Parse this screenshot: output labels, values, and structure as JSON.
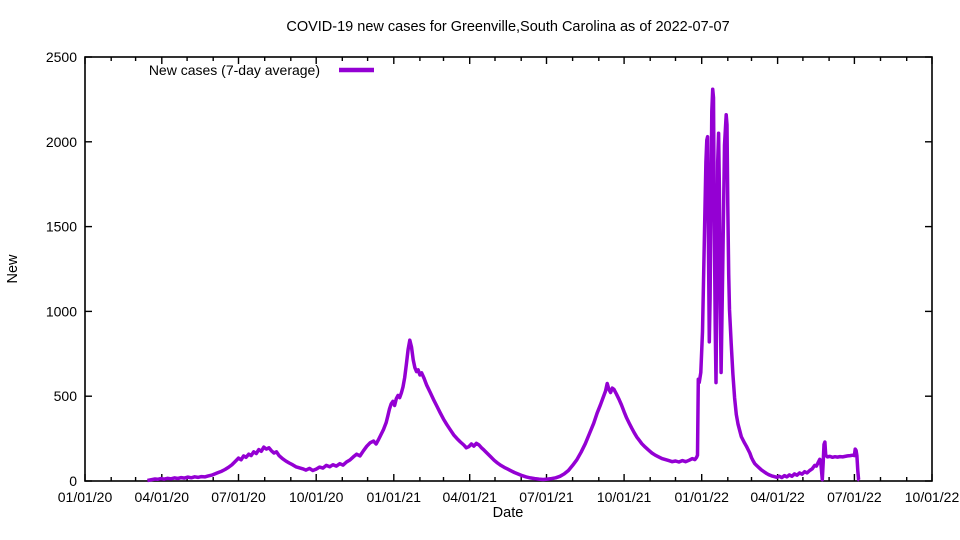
{
  "title": "COVID-19 new cases for Greenville,South Carolina as of 2022-07-07",
  "colors": {
    "line": "#9400d3",
    "text": "#000000",
    "background": "#ffffff",
    "border": "#000000"
  },
  "chart_data": {
    "type": "line",
    "title": "COVID-19 new cases for Greenville,South Carolina as of 2022-07-07",
    "xlabel": "Date",
    "ylabel": "New",
    "grid": false,
    "legend_position": "top-left-inside",
    "legend": [
      {
        "label": "New cases (7-day average)",
        "color": "#9400d3"
      }
    ],
    "line_color": "#9400d3",
    "line_width": 3.5,
    "x_axis": {
      "tick_labels": [
        "01/01/20",
        "04/01/20",
        "07/01/20",
        "10/01/20",
        "01/01/21",
        "04/01/21",
        "07/01/21",
        "10/01/21",
        "01/01/22",
        "04/01/22",
        "07/01/22",
        "10/01/22"
      ],
      "minor_ticks": "monthly",
      "range_dates": [
        "01/01/20",
        "10/01/22"
      ]
    },
    "y_axis": {
      "ticks": [
        0,
        500,
        1000,
        1500,
        2000,
        2500
      ],
      "range": [
        0,
        2500
      ]
    },
    "series": [
      {
        "name": "New cases (7-day average)",
        "x_unit": "days_since_2020_01_01",
        "points": [
          [
            74,
            3
          ],
          [
            77,
            6
          ],
          [
            80,
            9
          ],
          [
            83,
            12
          ],
          [
            86,
            10
          ],
          [
            90,
            14
          ],
          [
            94,
            11
          ],
          [
            98,
            16
          ],
          [
            102,
            13
          ],
          [
            106,
            18
          ],
          [
            110,
            15
          ],
          [
            114,
            20
          ],
          [
            118,
            17
          ],
          [
            122,
            23
          ],
          [
            126,
            19
          ],
          [
            130,
            25
          ],
          [
            134,
            21
          ],
          [
            138,
            26
          ],
          [
            142,
            24
          ],
          [
            146,
            30
          ],
          [
            150,
            34
          ],
          [
            154,
            42
          ],
          [
            158,
            50
          ],
          [
            162,
            58
          ],
          [
            166,
            68
          ],
          [
            170,
            80
          ],
          [
            174,
            95
          ],
          [
            178,
            115
          ],
          [
            182,
            135
          ],
          [
            185,
            125
          ],
          [
            188,
            148
          ],
          [
            191,
            140
          ],
          [
            194,
            158
          ],
          [
            197,
            150
          ],
          [
            200,
            172
          ],
          [
            203,
            162
          ],
          [
            206,
            185
          ],
          [
            209,
            175
          ],
          [
            212,
            200
          ],
          [
            215,
            188
          ],
          [
            218,
            196
          ],
          [
            221,
            178
          ],
          [
            224,
            165
          ],
          [
            227,
            172
          ],
          [
            230,
            150
          ],
          [
            234,
            132
          ],
          [
            238,
            118
          ],
          [
            242,
            106
          ],
          [
            246,
            96
          ],
          [
            250,
            84
          ],
          [
            254,
            78
          ],
          [
            258,
            72
          ],
          [
            262,
            64
          ],
          [
            266,
            74
          ],
          [
            270,
            62
          ],
          [
            274,
            70
          ],
          [
            278,
            82
          ],
          [
            282,
            76
          ],
          [
            286,
            92
          ],
          [
            290,
            84
          ],
          [
            294,
            96
          ],
          [
            298,
            88
          ],
          [
            302,
            102
          ],
          [
            306,
            94
          ],
          [
            310,
            112
          ],
          [
            314,
            124
          ],
          [
            318,
            142
          ],
          [
            322,
            158
          ],
          [
            326,
            148
          ],
          [
            330,
            178
          ],
          [
            334,
            205
          ],
          [
            338,
            225
          ],
          [
            342,
            235
          ],
          [
            345,
            218
          ],
          [
            348,
            245
          ],
          [
            351,
            275
          ],
          [
            354,
            305
          ],
          [
            357,
            345
          ],
          [
            359,
            385
          ],
          [
            361,
            425
          ],
          [
            363,
            455
          ],
          [
            365,
            470
          ],
          [
            367,
            445
          ],
          [
            369,
            485
          ],
          [
            371,
            505
          ],
          [
            373,
            492
          ],
          [
            375,
            520
          ],
          [
            377,
            555
          ],
          [
            379,
            610
          ],
          [
            381,
            690
          ],
          [
            383,
            775
          ],
          [
            385,
            830
          ],
          [
            387,
            790
          ],
          [
            389,
            715
          ],
          [
            391,
            668
          ],
          [
            393,
            645
          ],
          [
            395,
            655
          ],
          [
            397,
            625
          ],
          [
            399,
            638
          ],
          [
            402,
            605
          ],
          [
            405,
            565
          ],
          [
            409,
            525
          ],
          [
            413,
            482
          ],
          [
            417,
            442
          ],
          [
            421,
            402
          ],
          [
            425,
            365
          ],
          [
            429,
            332
          ],
          [
            433,
            302
          ],
          [
            437,
            272
          ],
          [
            441,
            250
          ],
          [
            445,
            230
          ],
          [
            449,
            212
          ],
          [
            452,
            196
          ],
          [
            455,
            202
          ],
          [
            458,
            218
          ],
          [
            461,
            206
          ],
          [
            464,
            222
          ],
          [
            467,
            212
          ],
          [
            470,
            196
          ],
          [
            473,
            182
          ],
          [
            477,
            162
          ],
          [
            481,
            142
          ],
          [
            485,
            122
          ],
          [
            489,
            106
          ],
          [
            493,
            92
          ],
          [
            497,
            80
          ],
          [
            501,
            70
          ],
          [
            505,
            60
          ],
          [
            509,
            50
          ],
          [
            513,
            42
          ],
          [
            518,
            32
          ],
          [
            523,
            24
          ],
          [
            528,
            18
          ],
          [
            533,
            14
          ],
          [
            538,
            11
          ],
          [
            543,
            9
          ],
          [
            548,
            11
          ],
          [
            553,
            14
          ],
          [
            558,
            19
          ],
          [
            563,
            28
          ],
          [
            568,
            42
          ],
          [
            573,
            62
          ],
          [
            578,
            92
          ],
          [
            583,
            125
          ],
          [
            588,
            170
          ],
          [
            593,
            220
          ],
          [
            598,
            280
          ],
          [
            603,
            340
          ],
          [
            607,
            400
          ],
          [
            611,
            450
          ],
          [
            614,
            490
          ],
          [
            617,
            530
          ],
          [
            619,
            575
          ],
          [
            621,
            540
          ],
          [
            623,
            522
          ],
          [
            625,
            548
          ],
          [
            627,
            540
          ],
          [
            630,
            512
          ],
          [
            633,
            482
          ],
          [
            636,
            448
          ],
          [
            639,
            408
          ],
          [
            642,
            372
          ],
          [
            645,
            342
          ],
          [
            648,
            312
          ],
          [
            651,
            285
          ],
          [
            654,
            260
          ],
          [
            657,
            240
          ],
          [
            660,
            220
          ],
          [
            664,
            200
          ],
          [
            668,
            182
          ],
          [
            672,
            165
          ],
          [
            676,
            152
          ],
          [
            680,
            142
          ],
          [
            684,
            132
          ],
          [
            688,
            126
          ],
          [
            692,
            120
          ],
          [
            696,
            114
          ],
          [
            700,
            118
          ],
          [
            704,
            112
          ],
          [
            708,
            120
          ],
          [
            712,
            114
          ],
          [
            716,
            122
          ],
          [
            720,
            132
          ],
          [
            723,
            126
          ],
          [
            725,
            140
          ],
          [
            726,
            152
          ],
          [
            727,
            600
          ],
          [
            728,
            580
          ],
          [
            730,
            640
          ],
          [
            732,
            880
          ],
          [
            734,
            1380
          ],
          [
            736,
            1880
          ],
          [
            737,
            2010
          ],
          [
            738,
            2030
          ],
          [
            739,
            1420
          ],
          [
            740,
            820
          ],
          [
            741,
            1080
          ],
          [
            742,
            1680
          ],
          [
            743,
            2180
          ],
          [
            744,
            2310
          ],
          [
            745,
            2260
          ],
          [
            746,
            1520
          ],
          [
            747,
            920
          ],
          [
            748,
            580
          ],
          [
            749,
            1180
          ],
          [
            750,
            1880
          ],
          [
            751,
            2050
          ],
          [
            752,
            1720
          ],
          [
            753,
            1020
          ],
          [
            754,
            640
          ],
          [
            756,
            1280
          ],
          [
            758,
            1980
          ],
          [
            760,
            2160
          ],
          [
            761,
            2100
          ],
          [
            762,
            1620
          ],
          [
            763,
            1220
          ],
          [
            764,
            1010
          ],
          [
            766,
            810
          ],
          [
            768,
            630
          ],
          [
            770,
            490
          ],
          [
            772,
            392
          ],
          [
            774,
            336
          ],
          [
            776,
            298
          ],
          [
            778,
            262
          ],
          [
            780,
            242
          ],
          [
            782,
            222
          ],
          [
            784,
            205
          ],
          [
            786,
            185
          ],
          [
            788,
            165
          ],
          [
            790,
            138
          ],
          [
            792,
            118
          ],
          [
            794,
            102
          ],
          [
            796,
            92
          ],
          [
            799,
            78
          ],
          [
            802,
            64
          ],
          [
            805,
            54
          ],
          [
            808,
            44
          ],
          [
            811,
            36
          ],
          [
            814,
            30
          ],
          [
            817,
            26
          ],
          [
            820,
            22
          ],
          [
            823,
            28
          ],
          [
            826,
            20
          ],
          [
            829,
            32
          ],
          [
            832,
            24
          ],
          [
            835,
            36
          ],
          [
            838,
            28
          ],
          [
            841,
            42
          ],
          [
            844,
            34
          ],
          [
            847,
            48
          ],
          [
            850,
            40
          ],
          [
            853,
            55
          ],
          [
            856,
            48
          ],
          [
            859,
            62
          ],
          [
            862,
            72
          ],
          [
            865,
            92
          ],
          [
            867,
            88
          ],
          [
            869,
            108
          ],
          [
            871,
            128
          ],
          [
            872,
            122
          ],
          [
            873,
            60
          ],
          [
            874,
            8
          ],
          [
            875,
            110
          ],
          [
            876,
            215
          ],
          [
            877,
            230
          ],
          [
            878,
            152
          ],
          [
            880,
            142
          ],
          [
            883,
            145
          ],
          [
            886,
            140
          ],
          [
            889,
            143
          ],
          [
            892,
            141
          ],
          [
            895,
            144
          ],
          [
            898,
            142
          ],
          [
            901,
            145
          ],
          [
            904,
            148
          ],
          [
            907,
            150
          ],
          [
            910,
            152
          ],
          [
            912,
            150
          ],
          [
            913,
            188
          ],
          [
            914,
            180
          ],
          [
            915,
            150
          ],
          [
            916,
            60
          ],
          [
            917,
            8
          ],
          [
            918,
            5
          ]
        ]
      }
    ]
  }
}
